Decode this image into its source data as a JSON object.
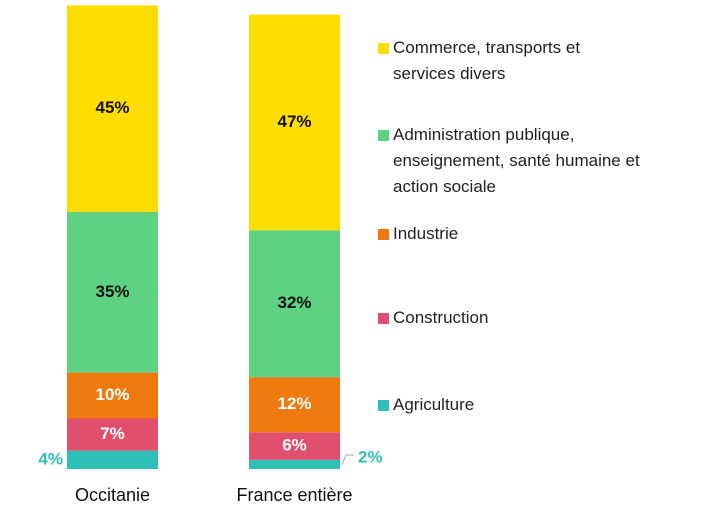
{
  "chart_data": {
    "type": "stacked_bar",
    "categories": [
      "Occitanie",
      "France entière"
    ],
    "ylim": [
      0,
      100
    ],
    "series": [
      {
        "name": "Agriculture",
        "color": "#2ebfb9",
        "values": [
          4,
          2
        ],
        "value_labels": [
          "4%",
          "2%"
        ]
      },
      {
        "name": "Construction",
        "color": "#e0506e",
        "values": [
          7,
          6
        ],
        "value_labels": [
          "7%",
          "6%"
        ]
      },
      {
        "name": "Industrie",
        "color": "#ee7a10",
        "values": [
          10,
          12
        ],
        "value_labels": [
          "10%",
          "12%"
        ]
      },
      {
        "name": "Administration publique, enseignement, santé humaine et action sociale",
        "color": "#5fd183",
        "values": [
          35,
          32
        ],
        "value_labels": [
          "35%",
          "32%"
        ]
      },
      {
        "name": "Commerce, transports et services divers",
        "color": "#ffdd00",
        "values": [
          45,
          47
        ],
        "value_labels": [
          "45%",
          "47%"
        ]
      }
    ]
  }
}
